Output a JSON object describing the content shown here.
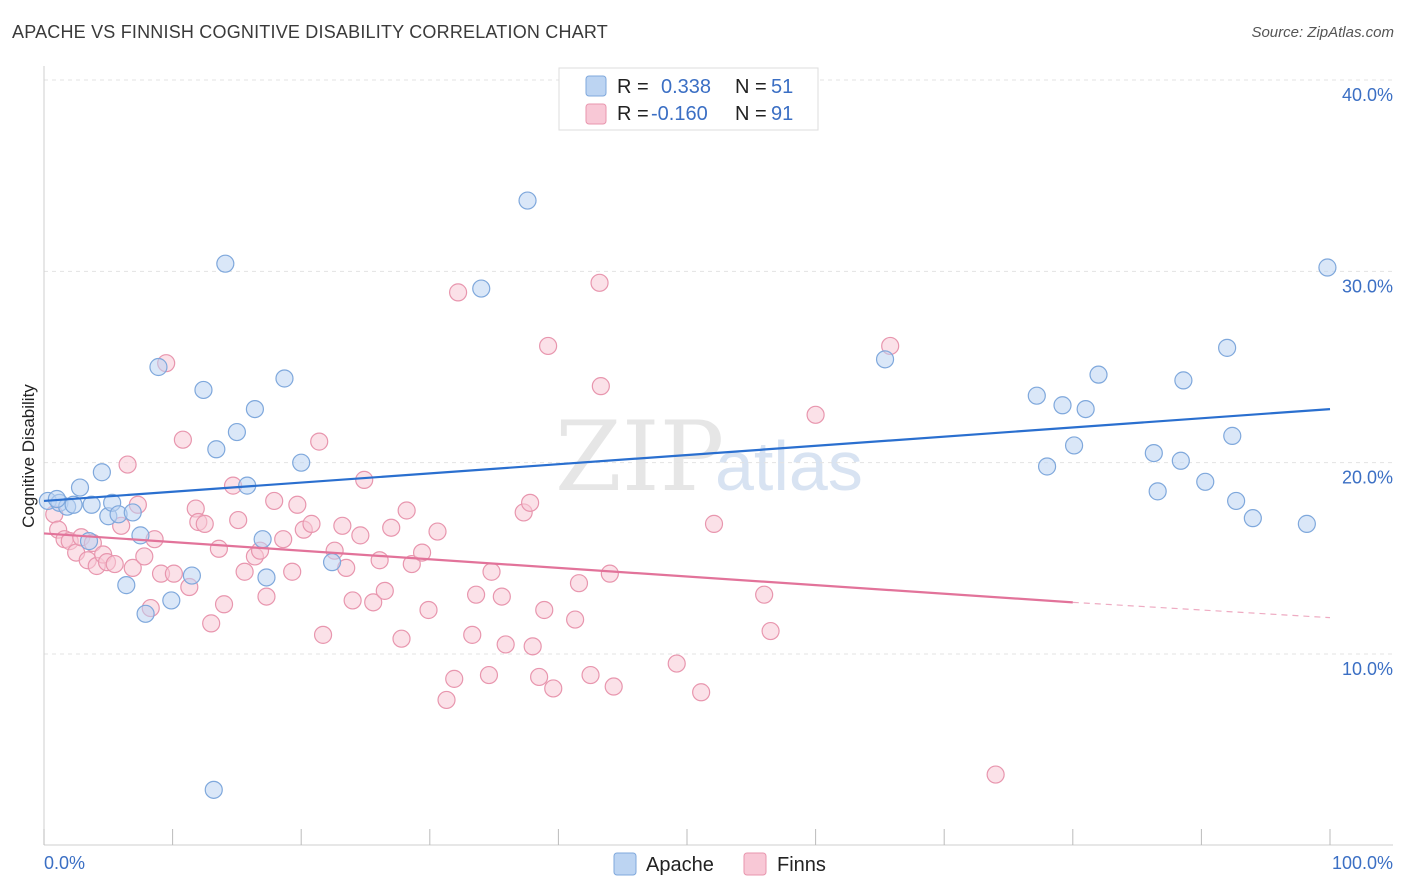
{
  "title": "APACHE VS FINNISH COGNITIVE DISABILITY CORRELATION CHART",
  "source": "Source: ZipAtlas.com",
  "watermark": {
    "zip": "ZIP",
    "atlas": "atlas"
  },
  "legend_top": {
    "r_label": "R =",
    "n_label": "N =",
    "apache": {
      "r": "0.338",
      "n": "51"
    },
    "finns": {
      "r": "-0.160",
      "n": "91"
    }
  },
  "legend_bottom": {
    "apache": "Apache",
    "finns": "Finns"
  },
  "colors": {
    "apache_fill": "#bcd4f2",
    "apache_stroke": "#7fa8dc",
    "apache_line": "#2a6fcf",
    "finns_fill": "#f8c8d6",
    "finns_stroke": "#e896ae",
    "finns_line": "#e2739a",
    "axis_text": "#3b6fc4"
  },
  "chart_data": {
    "type": "scatter",
    "title": "APACHE VS FINNISH COGNITIVE DISABILITY CORRELATION CHART",
    "xlabel": "",
    "ylabel": "Cognitive Disability",
    "xlim": [
      0,
      100
    ],
    "ylim": [
      0,
      42
    ],
    "x_tick_labels": [
      "0.0%",
      "100.0%"
    ],
    "y_ticks": [
      10,
      20,
      30,
      40
    ],
    "y_tick_labels": [
      "10.0%",
      "20.0%",
      "30.0%",
      "40.0%"
    ],
    "grid": true,
    "series": [
      {
        "name": "Apache",
        "trend": {
          "x0": 0,
          "y0": 18.0,
          "x1": 100,
          "y1": 22.8,
          "dashed_from": null
        },
        "points": [
          [
            0.3,
            18.0
          ],
          [
            1.2,
            17.9
          ],
          [
            1.8,
            17.7
          ],
          [
            2.3,
            17.8
          ],
          [
            2.8,
            18.7
          ],
          [
            3.5,
            15.9
          ],
          [
            3.7,
            17.8
          ],
          [
            4.5,
            19.5
          ],
          [
            5.0,
            17.2
          ],
          [
            5.3,
            17.9
          ],
          [
            5.8,
            17.3
          ],
          [
            6.4,
            13.6
          ],
          [
            6.9,
            17.4
          ],
          [
            7.5,
            16.2
          ],
          [
            7.9,
            12.1
          ],
          [
            8.9,
            25.0
          ],
          [
            9.9,
            12.8
          ],
          [
            11.5,
            14.1
          ],
          [
            12.4,
            23.8
          ],
          [
            13.4,
            20.7
          ],
          [
            14.1,
            30.4
          ],
          [
            15.0,
            21.6
          ],
          [
            15.8,
            18.8
          ],
          [
            16.4,
            22.8
          ],
          [
            17.0,
            16.0
          ],
          [
            17.3,
            14.0
          ],
          [
            18.7,
            24.4
          ],
          [
            20.0,
            20.0
          ],
          [
            22.4,
            14.8
          ],
          [
            34.0,
            29.1
          ],
          [
            37.6,
            33.7
          ],
          [
            65.4,
            25.4
          ],
          [
            77.2,
            23.5
          ],
          [
            78.0,
            19.8
          ],
          [
            79.2,
            23.0
          ],
          [
            80.1,
            20.9
          ],
          [
            81.0,
            22.8
          ],
          [
            82.0,
            24.6
          ],
          [
            86.3,
            20.5
          ],
          [
            86.6,
            18.5
          ],
          [
            88.4,
            20.1
          ],
          [
            88.6,
            24.3
          ],
          [
            90.3,
            19.0
          ],
          [
            92.0,
            26.0
          ],
          [
            92.4,
            21.4
          ],
          [
            92.7,
            18.0
          ],
          [
            94.0,
            17.1
          ],
          [
            98.2,
            16.8
          ],
          [
            99.8,
            30.2
          ],
          [
            13.2,
            2.9
          ],
          [
            1.0,
            18.1
          ]
        ]
      },
      {
        "name": "Finns",
        "trend": {
          "x0": 0,
          "y0": 16.3,
          "x1": 80,
          "y1": 12.7,
          "dashed_from": 80,
          "x2": 100,
          "y2": 11.9
        },
        "points": [
          [
            0.8,
            17.3
          ],
          [
            1.1,
            16.5
          ],
          [
            1.6,
            16.0
          ],
          [
            2.0,
            15.9
          ],
          [
            2.5,
            15.3
          ],
          [
            2.9,
            16.1
          ],
          [
            3.4,
            14.9
          ],
          [
            3.8,
            15.8
          ],
          [
            4.1,
            14.6
          ],
          [
            4.6,
            15.2
          ],
          [
            4.9,
            14.8
          ],
          [
            5.5,
            14.7
          ],
          [
            6.0,
            16.7
          ],
          [
            6.5,
            19.9
          ],
          [
            6.9,
            14.5
          ],
          [
            7.3,
            17.8
          ],
          [
            7.8,
            15.1
          ],
          [
            8.3,
            12.4
          ],
          [
            8.6,
            16.0
          ],
          [
            9.1,
            14.2
          ],
          [
            9.5,
            25.2
          ],
          [
            10.1,
            14.2
          ],
          [
            10.8,
            21.2
          ],
          [
            11.3,
            13.5
          ],
          [
            11.8,
            17.6
          ],
          [
            12.0,
            16.9
          ],
          [
            12.5,
            16.8
          ],
          [
            13.0,
            11.6
          ],
          [
            13.6,
            15.5
          ],
          [
            14.0,
            12.6
          ],
          [
            14.7,
            18.8
          ],
          [
            15.1,
            17.0
          ],
          [
            15.6,
            14.3
          ],
          [
            16.4,
            15.1
          ],
          [
            16.8,
            15.4
          ],
          [
            17.3,
            13.0
          ],
          [
            17.9,
            18.0
          ],
          [
            18.6,
            16.0
          ],
          [
            19.3,
            14.3
          ],
          [
            19.7,
            17.8
          ],
          [
            20.2,
            16.5
          ],
          [
            20.8,
            16.8
          ],
          [
            21.4,
            21.1
          ],
          [
            21.7,
            11.0
          ],
          [
            22.6,
            15.4
          ],
          [
            23.2,
            16.7
          ],
          [
            23.5,
            14.5
          ],
          [
            24.0,
            12.8
          ],
          [
            24.6,
            16.2
          ],
          [
            24.9,
            19.1
          ],
          [
            25.6,
            12.7
          ],
          [
            26.1,
            14.9
          ],
          [
            26.5,
            13.3
          ],
          [
            27.0,
            16.6
          ],
          [
            27.8,
            10.8
          ],
          [
            28.2,
            17.5
          ],
          [
            28.6,
            14.7
          ],
          [
            29.4,
            15.3
          ],
          [
            29.9,
            12.3
          ],
          [
            30.6,
            16.4
          ],
          [
            31.3,
            7.6
          ],
          [
            31.9,
            8.7
          ],
          [
            32.2,
            28.9
          ],
          [
            33.3,
            11.0
          ],
          [
            33.6,
            13.1
          ],
          [
            34.6,
            8.9
          ],
          [
            34.8,
            14.3
          ],
          [
            35.9,
            10.5
          ],
          [
            35.6,
            13.0
          ],
          [
            37.3,
            17.4
          ],
          [
            37.8,
            17.9
          ],
          [
            38.0,
            10.4
          ],
          [
            38.5,
            8.8
          ],
          [
            38.9,
            12.3
          ],
          [
            39.2,
            26.1
          ],
          [
            39.6,
            8.2
          ],
          [
            41.3,
            11.8
          ],
          [
            41.6,
            13.7
          ],
          [
            42.5,
            8.9
          ],
          [
            43.2,
            29.4
          ],
          [
            43.3,
            24.0
          ],
          [
            44.0,
            14.2
          ],
          [
            44.3,
            8.3
          ],
          [
            49.2,
            9.5
          ],
          [
            51.1,
            8.0
          ],
          [
            52.1,
            16.8
          ],
          [
            56.0,
            13.1
          ],
          [
            56.5,
            11.2
          ],
          [
            60.0,
            22.5
          ],
          [
            65.8,
            26.1
          ],
          [
            74.0,
            3.7
          ]
        ]
      }
    ]
  }
}
